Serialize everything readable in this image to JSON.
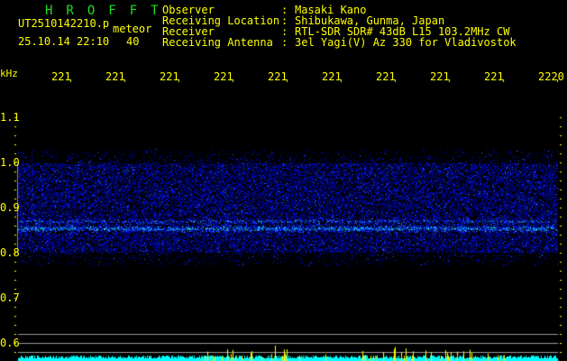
{
  "app_title": "HROFFT",
  "file_name": "UT2510142210.png",
  "mode_label": "meteor",
  "datetime": "25.10.14 22:10",
  "count": "40",
  "info": [
    {
      "label": "Observer",
      "value": "Masaki Kano"
    },
    {
      "label": "Receiving Location",
      "value": "Shibukawa, Gunma, Japan"
    },
    {
      "label": "Receiver",
      "value": "RTL-SDR SDR# 43dB L15 103.2MHz CW"
    },
    {
      "label": "Receiving Antenna",
      "value": "3el Yagi(V) Az 330 for Vladivostok"
    }
  ],
  "axis_unit": "kHz",
  "time_labels": [
    "2211",
    "2212",
    "2213",
    "2214",
    "2215",
    "2216",
    "2217",
    "2218",
    "2219",
    "2220"
  ],
  "freq_labels": [
    "1.1",
    "1.0",
    "0.9",
    "0.8",
    "0.7",
    "0.6"
  ],
  "colors": {
    "text": "#ffff00",
    "title": "#22dd22",
    "histogram": "#00ffff",
    "spike": "#ffff00",
    "signal": "#0000ff"
  }
}
